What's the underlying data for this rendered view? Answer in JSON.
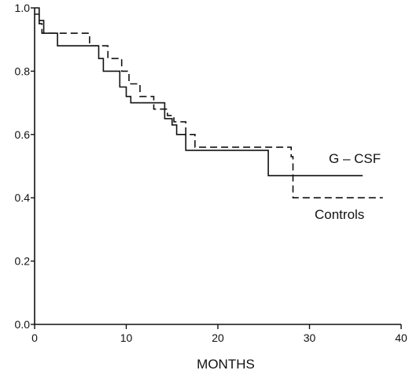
{
  "chart_data": {
    "type": "line",
    "xlabel": "MONTHS",
    "ylabel": "",
    "xlim": [
      0,
      40
    ],
    "ylim": [
      0,
      1
    ],
    "x_ticks": [
      0,
      10,
      20,
      30,
      40
    ],
    "y_ticks": [
      "0.0",
      "0.2",
      "0.4",
      "0.6",
      "0.8",
      "1.0"
    ],
    "grid": false,
    "series": [
      {
        "name": "G – CSF",
        "line_style": "solid",
        "step": true,
        "x": [
          0,
          0.5,
          1,
          2.5,
          6.5,
          7,
          7.5,
          9.3,
          10,
          10.5,
          14.2,
          15,
          15.5,
          16.5,
          25.5,
          35.8
        ],
        "y": [
          1.0,
          0.96,
          0.92,
          0.88,
          0.88,
          0.84,
          0.8,
          0.75,
          0.72,
          0.7,
          0.65,
          0.63,
          0.6,
          0.55,
          0.47,
          0.47
        ]
      },
      {
        "name": "Controls",
        "line_style": "dashed",
        "step": true,
        "x": [
          0,
          0.5,
          0.8,
          3,
          6,
          7.5,
          8,
          9.5,
          10.3,
          11.5,
          13,
          14.5,
          15.2,
          16.5,
          17.5,
          28,
          28.2,
          38
        ],
        "y": [
          0.98,
          0.95,
          0.92,
          0.92,
          0.88,
          0.88,
          0.84,
          0.8,
          0.76,
          0.72,
          0.68,
          0.66,
          0.64,
          0.6,
          0.56,
          0.53,
          0.4,
          0.4
        ]
      }
    ]
  }
}
